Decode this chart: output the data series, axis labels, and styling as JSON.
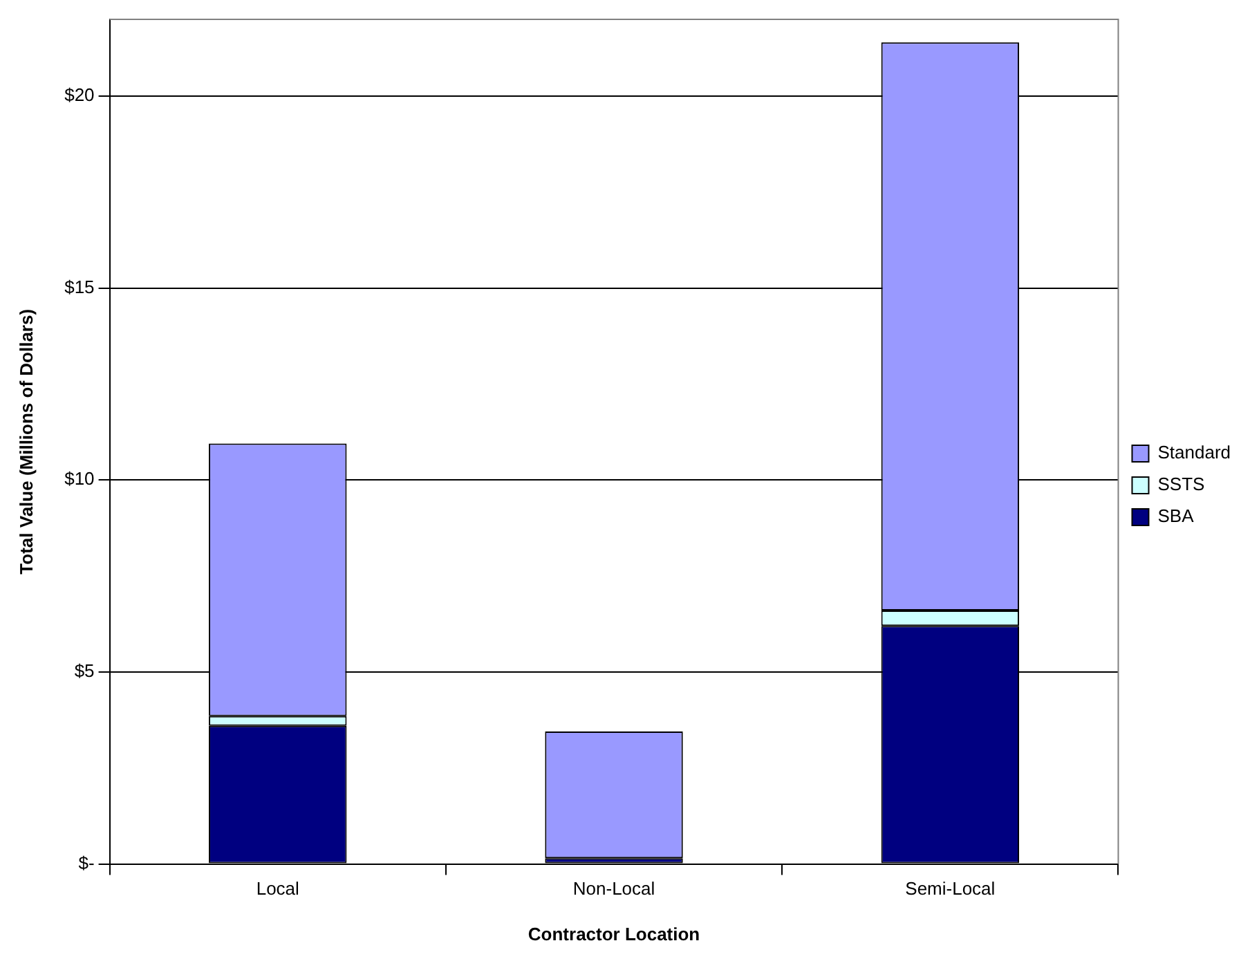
{
  "chart_data": {
    "type": "bar",
    "stacked": true,
    "xlabel": "Contractor Location",
    "ylabel": "Total Value (Millions of Dollars)",
    "categories": [
      "Local",
      "Non-Local",
      "Semi-Local"
    ],
    "series": [
      {
        "name": "SBA",
        "color": "#000080",
        "values": [
          3.6,
          0.15,
          6.2
        ]
      },
      {
        "name": "SSTS",
        "color": "#ccffff",
        "values": [
          0.25,
          0,
          0.4
        ]
      },
      {
        "name": "Standard",
        "color": "#9999ff",
        "values": [
          7.1,
          3.3,
          14.8
        ]
      }
    ],
    "ylim": [
      0,
      22
    ],
    "yticks": [
      {
        "value": 0,
        "label": "$-"
      },
      {
        "value": 5,
        "label": "$5"
      },
      {
        "value": 10,
        "label": "$10"
      },
      {
        "value": 15,
        "label": "$15"
      },
      {
        "value": 20,
        "label": "$20"
      }
    ],
    "grid": "y",
    "legend": "right"
  }
}
